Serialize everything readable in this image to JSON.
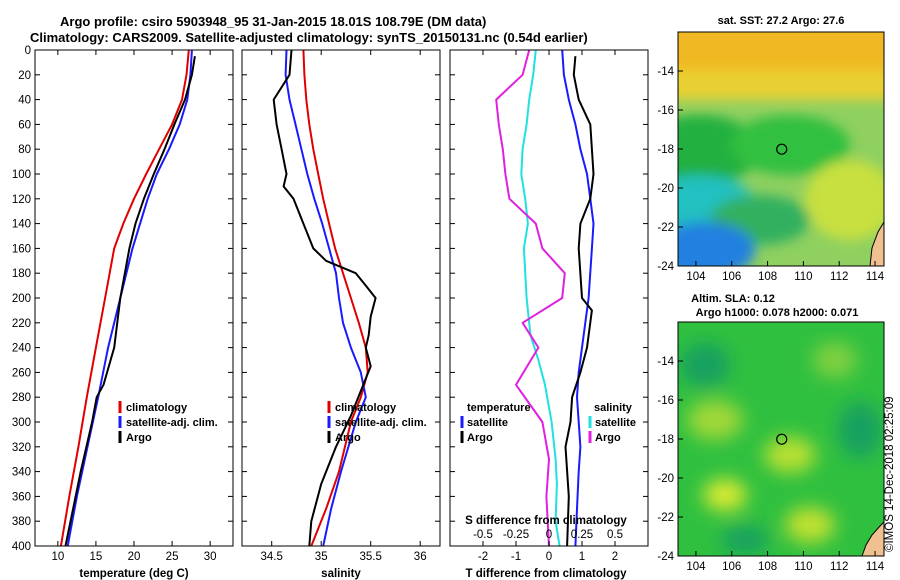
{
  "title": {
    "line1": "Argo profile: csiro 5903948_95 31-Jan-2015 18.01S 108.79E (DM data)",
    "line2": "Climatology: CARS2009. Satellite-adjusted climatology: synTS_20150131.nc (0.54d earlier)"
  },
  "watermark": "©IMOS 14-Dec-2018 02:25:09",
  "colors": {
    "climatology": "#e00000",
    "satellite": "#1a1aff",
    "argo": "#000000",
    "s_difference": "#e020e0",
    "t_difference": "#20e0e0"
  },
  "chart_data": [
    {
      "id": "temperature",
      "type": "line",
      "xlabel": "temperature (deg C)",
      "xlim": [
        7,
        33
      ],
      "xticks": [
        10,
        15,
        20,
        25,
        30
      ],
      "ylim": [
        400,
        0
      ],
      "yticks": [
        0,
        20,
        40,
        60,
        80,
        100,
        120,
        140,
        160,
        180,
        200,
        220,
        240,
        260,
        280,
        300,
        320,
        340,
        360,
        380,
        400
      ],
      "legend": {
        "placement": "lower-right",
        "entries": [
          "climatology",
          "satellite-adj. clim.",
          "Argo"
        ]
      },
      "series": [
        {
          "name": "climatology",
          "color": "#e00000",
          "x": [
            27.2,
            26.9,
            26.3,
            25.0,
            23.3,
            21.6,
            20.0,
            18.6,
            17.4,
            16.2,
            15.0,
            13.8,
            12.7,
            11.5,
            10.4
          ],
          "y": [
            0,
            20,
            40,
            60,
            80,
            100,
            120,
            140,
            160,
            200,
            240,
            280,
            320,
            360,
            400
          ]
        },
        {
          "name": "satellite-adj. clim.",
          "color": "#1a1aff",
          "x": [
            27.6,
            27.4,
            27.0,
            26.0,
            24.6,
            23.0,
            21.8,
            20.8,
            19.8,
            18.2,
            16.6,
            15.3,
            13.9,
            12.5,
            11.3
          ],
          "y": [
            0,
            20,
            40,
            60,
            80,
            100,
            120,
            140,
            160,
            200,
            240,
            280,
            320,
            360,
            400
          ]
        },
        {
          "name": "Argo",
          "color": "#000000",
          "x": [
            28.0,
            27.6,
            26.7,
            25.3,
            24.0,
            22.6,
            21.3,
            20.2,
            19.4,
            18.2,
            17.4,
            16.0,
            15.1,
            14.5,
            13.0,
            12.0,
            11.0
          ],
          "y": [
            5,
            20,
            40,
            60,
            80,
            100,
            120,
            140,
            160,
            200,
            240,
            270,
            280,
            300,
            340,
            370,
            400
          ]
        }
      ]
    },
    {
      "id": "salinity",
      "type": "line",
      "xlabel": "salinity",
      "xlim": [
        34.2,
        36.2
      ],
      "xticks": [
        34.5,
        35,
        35.5,
        36
      ],
      "xtick_labels": [
        "34.5",
        "35",
        "35.5",
        "36"
      ],
      "ylim": [
        400,
        0
      ],
      "legend": {
        "placement": "lower-right",
        "entries": [
          "climatology",
          "satellite-adj. clim.",
          "Argo"
        ]
      },
      "series": [
        {
          "name": "climatology",
          "color": "#e00000",
          "x": [
            34.82,
            34.83,
            34.85,
            34.88,
            34.92,
            34.97,
            35.02,
            35.08,
            35.14,
            35.22,
            35.3,
            35.38,
            35.45,
            35.47,
            35.4,
            35.3,
            35.18,
            35.05,
            34.9
          ],
          "y": [
            0,
            20,
            40,
            60,
            80,
            100,
            120,
            140,
            160,
            180,
            200,
            220,
            240,
            260,
            280,
            300,
            340,
            370,
            400
          ]
        },
        {
          "name": "satellite-adj. clim.",
          "color": "#1a1aff",
          "x": [
            34.65,
            34.64,
            34.68,
            34.74,
            34.8,
            34.86,
            34.93,
            35.01,
            35.08,
            35.15,
            35.18,
            35.22,
            35.3,
            35.4,
            35.45,
            35.35,
            35.2,
            35.1,
            35.02
          ],
          "y": [
            0,
            20,
            40,
            60,
            80,
            100,
            120,
            140,
            160,
            180,
            200,
            220,
            240,
            260,
            280,
            300,
            340,
            370,
            400
          ]
        },
        {
          "name": "Argo",
          "color": "#000000",
          "x": [
            34.7,
            34.68,
            34.52,
            34.55,
            34.6,
            34.65,
            34.62,
            34.72,
            34.82,
            34.92,
            35.05,
            35.35,
            35.45,
            35.55,
            35.5,
            35.48,
            35.45,
            35.5,
            35.4,
            35.3,
            35.15,
            35.0,
            34.9,
            34.88
          ],
          "y": [
            0,
            20,
            40,
            60,
            80,
            100,
            110,
            120,
            140,
            160,
            170,
            180,
            190,
            200,
            215,
            230,
            240,
            255,
            275,
            295,
            320,
            350,
            380,
            400
          ]
        }
      ]
    },
    {
      "id": "difference",
      "type": "line",
      "xlabel": "T difference from climatology",
      "xlim": [
        -3,
        3
      ],
      "xticks": [
        -2,
        -1,
        0,
        1,
        2
      ],
      "x2label": "S difference from climatology",
      "x2lim": [
        -0.75,
        0.75
      ],
      "x2ticks": [
        -0.5,
        -0.25,
        0,
        0.25,
        0.5
      ],
      "x2tick_labels": [
        "-0.5",
        "-0.25",
        "0",
        "0.25",
        "0.5"
      ],
      "ylim": [
        400,
        0
      ],
      "legend": {
        "placement": "lower-center",
        "temperature_heading": "temperature",
        "salinity_heading": "salinity",
        "entries": [
          "satellite",
          "Argo"
        ]
      },
      "series": [
        {
          "name": "T satellite",
          "color": "#1a1aff",
          "axis": "T",
          "x": [
            0.4,
            0.45,
            0.6,
            0.8,
            0.95,
            1.15,
            1.25,
            1.35,
            1.3,
            1.2,
            1.0,
            0.9,
            0.85,
            0.9,
            0.95,
            0.9,
            0.85,
            0.8
          ],
          "y": [
            0,
            20,
            40,
            60,
            80,
            100,
            120,
            140,
            160,
            200,
            240,
            260,
            280,
            300,
            320,
            340,
            370,
            400
          ]
        },
        {
          "name": "T Argo",
          "color": "#000000",
          "axis": "T",
          "x": [
            0.8,
            0.75,
            0.9,
            1.25,
            1.3,
            1.35,
            1.25,
            0.95,
            0.9,
            1.0,
            1.3,
            1.15,
            0.95,
            0.7,
            0.65,
            0.5,
            0.6,
            0.55
          ],
          "y": [
            5,
            20,
            40,
            60,
            80,
            100,
            120,
            140,
            160,
            200,
            210,
            240,
            260,
            280,
            300,
            320,
            360,
            400
          ]
        },
        {
          "name": "S satellite",
          "color": "#20e0e0",
          "axis": "S",
          "x": [
            -0.1,
            -0.12,
            -0.15,
            -0.17,
            -0.2,
            -0.21,
            -0.18,
            -0.16,
            -0.19,
            -0.17,
            -0.14,
            -0.08,
            -0.03,
            0.02,
            0.05,
            0.06,
            0.05,
            0.08
          ],
          "y": [
            0,
            20,
            40,
            60,
            80,
            100,
            120,
            140,
            160,
            200,
            230,
            250,
            270,
            300,
            330,
            350,
            380,
            400
          ]
        },
        {
          "name": "S Argo",
          "color": "#e020e0",
          "axis": "S",
          "x": [
            -0.15,
            -0.2,
            -0.4,
            -0.38,
            -0.35,
            -0.33,
            -0.3,
            -0.1,
            -0.05,
            0.12,
            0.1,
            -0.2,
            -0.08,
            -0.25,
            -0.05,
            0.0,
            -0.02,
            0.0
          ],
          "y": [
            0,
            20,
            40,
            60,
            80,
            100,
            120,
            140,
            160,
            180,
            200,
            220,
            240,
            270,
            300,
            330,
            360,
            400
          ]
        }
      ]
    },
    {
      "id": "sst_map",
      "type": "heatmap",
      "title": "sat. SST: 27.2 Argo: 27.6",
      "xlim": [
        103,
        114.5
      ],
      "ylim": [
        -24,
        -12
      ],
      "xticks": [
        104,
        106,
        108,
        110,
        112,
        114
      ],
      "yticks": [
        -14,
        -16,
        -18,
        -20,
        -22,
        -24
      ],
      "marker": {
        "lon": 108.79,
        "lat": -18.01
      }
    },
    {
      "id": "sla_map",
      "type": "heatmap",
      "title": "Altim. SLA: 0.12",
      "subtitle": "Argo h1000: 0.078 h2000: 0.071",
      "xlim": [
        103,
        114.5
      ],
      "ylim": [
        -24,
        -12
      ],
      "xticks": [
        104,
        106,
        108,
        110,
        112,
        114
      ],
      "yticks": [
        -14,
        -16,
        -18,
        -20,
        -22,
        -24
      ],
      "marker": {
        "lon": 108.79,
        "lat": -18.01
      }
    }
  ]
}
